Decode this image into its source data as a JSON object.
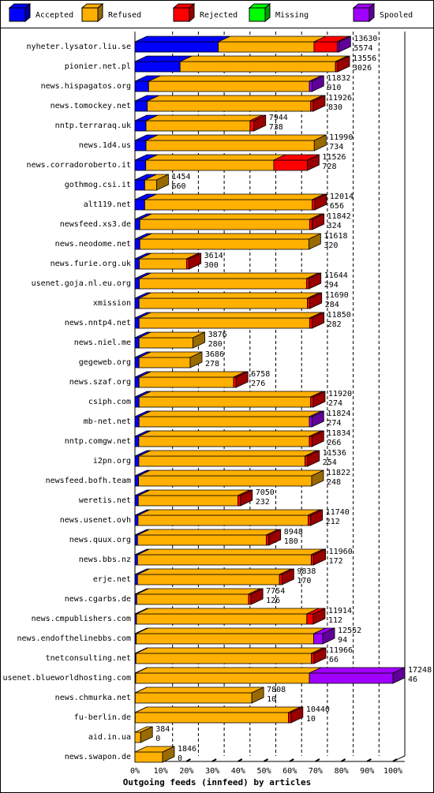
{
  "chart_data": {
    "type": "bar",
    "stacked": true,
    "orientation": "horizontal",
    "xlabel": "Outgoing feeds (innfeed) by articles",
    "categories": [
      "nyheter.lysator.liu.se",
      "pionier.net.pl",
      "news.hispagatos.org",
      "news.tomockey.net",
      "nntp.terraraq.uk",
      "news.1d4.us",
      "news.corradoroberto.it",
      "gothmog.csi.it",
      "alt119.net",
      "newsfeed.xs3.de",
      "news.neodome.net",
      "news.furie.org.uk",
      "usenet.goja.nl.eu.org",
      "xmission",
      "news.nntp4.net",
      "news.niel.me",
      "gegeweb.org",
      "news.szaf.org",
      "csiph.com",
      "mb-net.net",
      "nntp.comgw.net",
      "i2pn.org",
      "newsfeed.bofh.team",
      "weretis.net",
      "news.usenet.ovh",
      "news.quux.org",
      "news.bbs.nz",
      "erje.net",
      "news.cgarbs.de",
      "news.cmpublishers.com",
      "news.endofthelinebbs.com",
      "tnetconsulting.net",
      "usenet.blueworldhosting.com",
      "news.chmurka.net",
      "fu-berlin.de",
      "aid.in.ua",
      "news.swapon.de"
    ],
    "row_totals": [
      13630,
      13556,
      11832,
      11926,
      7944,
      11990,
      11526,
      1454,
      12014,
      11842,
      11618,
      3614,
      11644,
      11690,
      11850,
      3876,
      3686,
      6758,
      11920,
      11824,
      11834,
      11536,
      11822,
      7050,
      11740,
      8948,
      11960,
      9838,
      7754,
      11914,
      12552,
      11966,
      17248,
      7808,
      10440,
      384,
      1846
    ],
    "row_accepted": [
      5574,
      3026,
      910,
      830,
      738,
      734,
      728,
      660,
      656,
      324,
      320,
      300,
      294,
      284,
      282,
      280,
      278,
      276,
      274,
      274,
      266,
      254,
      248,
      232,
      212,
      180,
      172,
      170,
      126,
      112,
      94,
      66,
      46,
      10,
      10,
      0,
      0
    ],
    "series": [
      {
        "name": "Accepted",
        "color": "#0000ff",
        "values": [
          32.3,
          17.5,
          5.3,
          4.8,
          4.3,
          4.3,
          4.2,
          3.8,
          3.8,
          1.9,
          1.9,
          1.7,
          1.7,
          1.6,
          1.6,
          1.6,
          1.6,
          1.6,
          1.6,
          1.6,
          1.5,
          1.5,
          1.4,
          1.3,
          1.2,
          1.0,
          1.0,
          1.0,
          0.7,
          0.6,
          0.5,
          0.4,
          0.3,
          0.1,
          0.1,
          0,
          0
        ]
      },
      {
        "name": "Refused",
        "color": "#ffb000",
        "values": [
          37.1,
          60.2,
          62.3,
          63.3,
          40.3,
          65.2,
          49.6,
          4.6,
          64.9,
          65.8,
          65.5,
          18.3,
          64.8,
          65.2,
          66.1,
          20.9,
          19.8,
          36.6,
          66.5,
          66.0,
          66.1,
          64.4,
          67.1,
          38.6,
          65.9,
          49.9,
          67.3,
          55.0,
          43.3,
          66.0,
          68.8,
          68.0,
          67.3,
          45.2,
          59.4,
          2.2,
          10.7
        ]
      },
      {
        "name": "Rejected",
        "color": "#ff0000",
        "values": [
          9.0,
          0.9,
          0,
          1,
          1.5,
          0,
          13.0,
          0,
          1,
          1,
          0,
          1,
          1,
          1,
          1,
          0,
          0,
          1,
          1,
          0,
          1,
          1,
          0,
          1,
          1,
          1,
          1,
          1,
          1,
          2.5,
          0,
          1,
          0,
          0,
          1,
          0,
          0
        ]
      },
      {
        "name": "Missing",
        "color": "#00ff00",
        "values": [
          0,
          0,
          0,
          0,
          0,
          0,
          0,
          0,
          0,
          0,
          0,
          0,
          0,
          0,
          0,
          0,
          0,
          0,
          0,
          0,
          0,
          0,
          0,
          0,
          0,
          0,
          0,
          0,
          0,
          0,
          0,
          0,
          0,
          0,
          0,
          0,
          0
        ]
      },
      {
        "name": "Spooled",
        "color": "#a000ff",
        "values": [
          0.6,
          0,
          1,
          0,
          0,
          0,
          0,
          0,
          0,
          0,
          0,
          0,
          0,
          0,
          0,
          0,
          0,
          0,
          0,
          1,
          0,
          0,
          0,
          0,
          0,
          0,
          0,
          0,
          0,
          0,
          3.5,
          0,
          32.4,
          0,
          0,
          0,
          0
        ]
      }
    ],
    "xlim": [
      0,
      100
    ],
    "xticks": [
      {
        "value": 0,
        "label": "0%"
      },
      {
        "value": 10,
        "label": "10%"
      },
      {
        "value": 20,
        "label": "20%"
      },
      {
        "value": 30,
        "label": "30%"
      },
      {
        "value": 40,
        "label": "40%"
      },
      {
        "value": 50,
        "label": "50%"
      },
      {
        "value": 60,
        "label": "60%"
      },
      {
        "value": 70,
        "label": "70%"
      },
      {
        "value": 80,
        "label": "80%"
      },
      {
        "value": 90,
        "label": "90%"
      },
      {
        "value": 100,
        "label": "100%"
      }
    ],
    "grid": true
  }
}
